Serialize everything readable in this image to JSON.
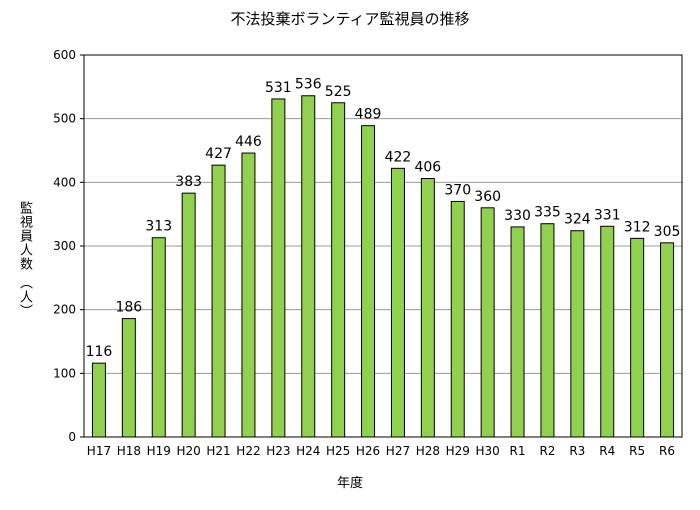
{
  "chart_data": {
    "type": "bar",
    "title": "不法投棄ボランティア監視員の推移",
    "xlabel": "年度",
    "ylabel": "監視員人数 （人）",
    "categories": [
      "H17",
      "H18",
      "H19",
      "H20",
      "H21",
      "H22",
      "H23",
      "H24",
      "H25",
      "H26",
      "H27",
      "H28",
      "H29",
      "H30",
      "R1",
      "R2",
      "R3",
      "R4",
      "R5",
      "R6"
    ],
    "values": [
      116,
      186,
      313,
      383,
      427,
      446,
      531,
      536,
      525,
      489,
      422,
      406,
      370,
      360,
      330,
      335,
      324,
      331,
      312,
      305
    ],
    "ylim": [
      0,
      600
    ],
    "yticks": [
      0,
      100,
      200,
      300,
      400,
      500,
      600
    ],
    "grid": true,
    "legend": "none",
    "bar_color": "#92d050",
    "bar_edge_color": "#000000"
  }
}
